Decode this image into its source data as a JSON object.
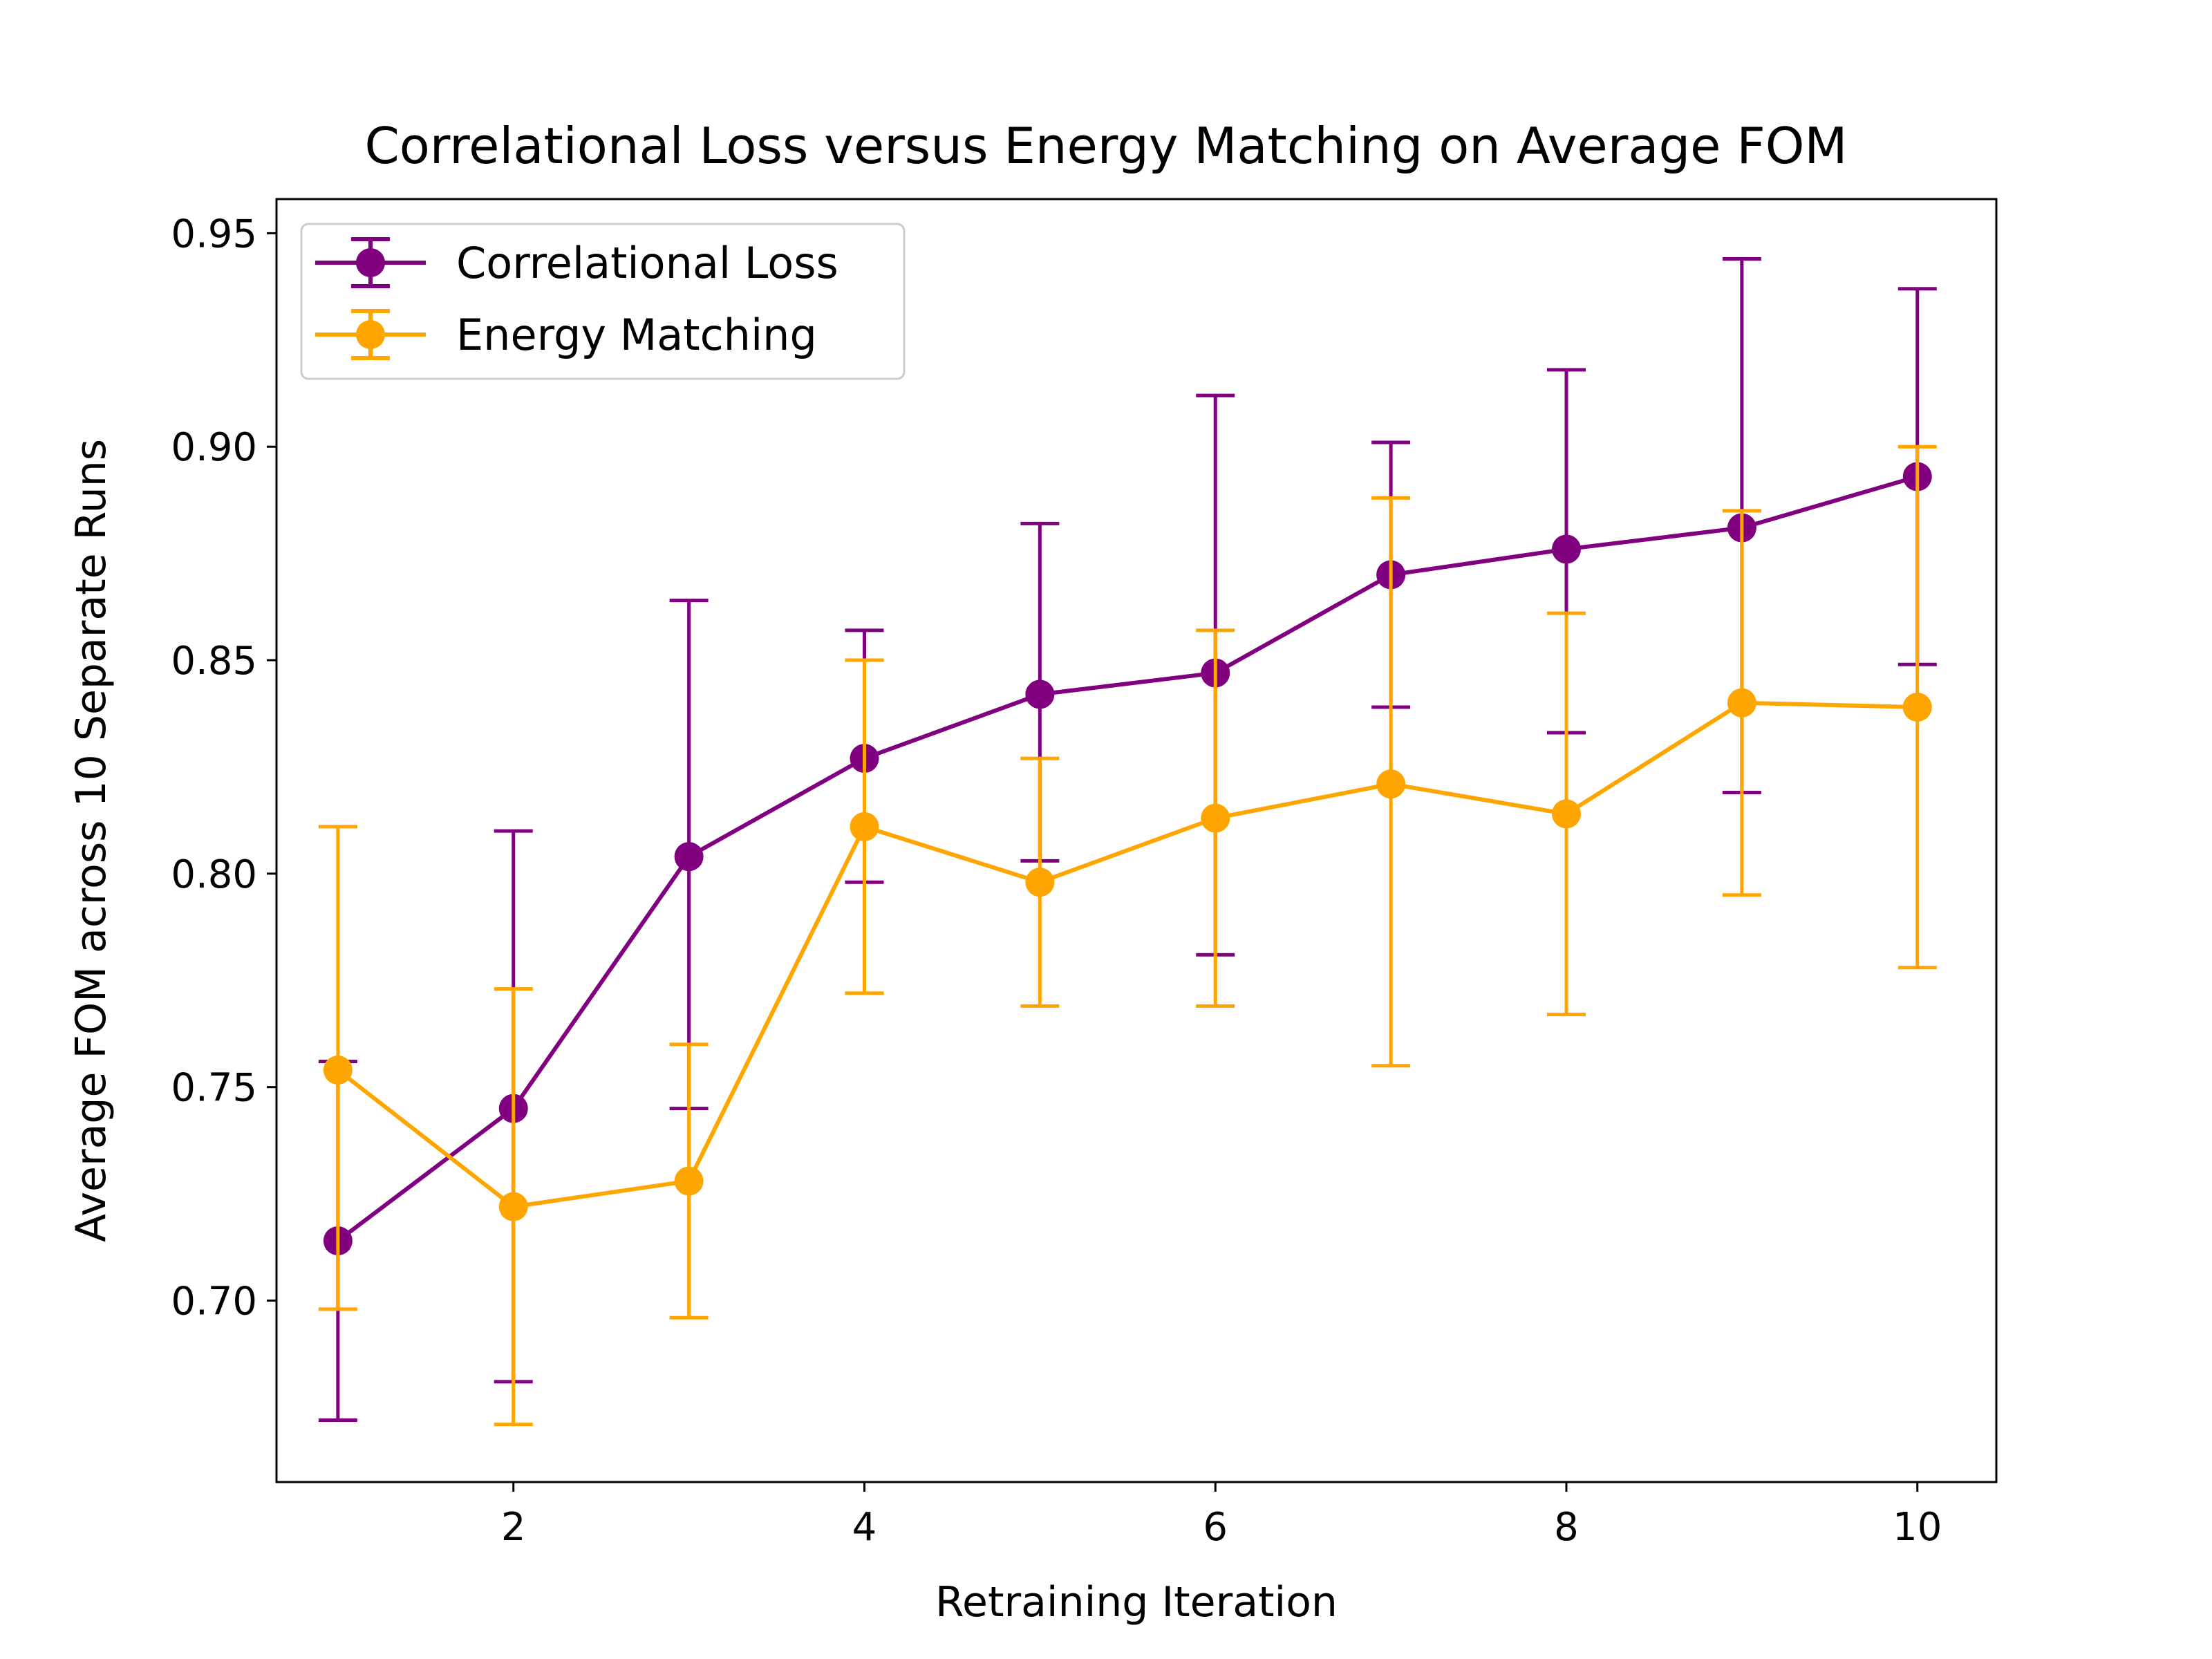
{
  "chart_data": {
    "type": "line",
    "title": "Correlational Loss versus Energy Matching on Average FOM",
    "xlabel": "Retraining Iteration",
    "ylabel": "Average FOM across 10 Separate Runs",
    "x": [
      1,
      2,
      3,
      4,
      5,
      6,
      7,
      8,
      9,
      10
    ],
    "xlim": [
      0.65,
      10.45
    ],
    "ylim": [
      0.6575,
      0.958
    ],
    "xticks": [
      2,
      4,
      6,
      8,
      10
    ],
    "xtick_labels": [
      "2",
      "4",
      "6",
      "8",
      "10"
    ],
    "yticks": [
      0.7,
      0.75,
      0.8,
      0.85,
      0.9,
      0.95
    ],
    "ytick_labels": [
      "0.70",
      "0.75",
      "0.80",
      "0.85",
      "0.90",
      "0.95"
    ],
    "grid": false,
    "legend_position": "top-left",
    "series": [
      {
        "name": "Correlational Loss",
        "color": "#800080",
        "values": [
          0.714,
          0.745,
          0.804,
          0.827,
          0.842,
          0.847,
          0.87,
          0.876,
          0.881,
          0.893
        ],
        "error_low": [
          0.672,
          0.681,
          0.745,
          0.798,
          0.803,
          0.781,
          0.839,
          0.833,
          0.819,
          0.849
        ],
        "error_high": [
          0.756,
          0.81,
          0.864,
          0.857,
          0.882,
          0.912,
          0.901,
          0.918,
          0.944,
          0.937
        ]
      },
      {
        "name": "Energy Matching",
        "color": "#ffa500",
        "values": [
          0.754,
          0.722,
          0.728,
          0.811,
          0.798,
          0.813,
          0.821,
          0.814,
          0.84,
          0.839
        ],
        "error_low": [
          0.698,
          0.671,
          0.696,
          0.772,
          0.769,
          0.769,
          0.755,
          0.767,
          0.795,
          0.778
        ],
        "error_high": [
          0.811,
          0.773,
          0.76,
          0.85,
          0.827,
          0.857,
          0.888,
          0.861,
          0.885,
          0.9
        ]
      }
    ]
  }
}
